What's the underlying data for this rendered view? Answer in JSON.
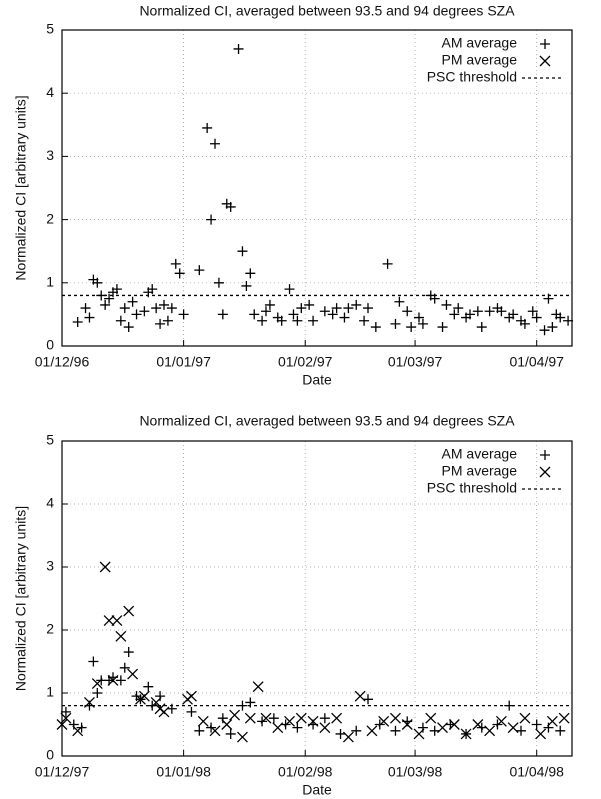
{
  "chart_data": [
    {
      "type": "scatter",
      "title": "Normalized CI, averaged between 93.5 and 94 degrees SZA",
      "xlabel": "Date",
      "ylabel": "Normalized CI [arbitrary units]",
      "xlim": [
        "1996-12-01",
        "1997-04-10"
      ],
      "xticks": [
        {
          "value": "1996-12-01",
          "label": "01/12/96"
        },
        {
          "value": "1997-01-01",
          "label": "01/01/97"
        },
        {
          "value": "1997-02-01",
          "label": "01/02/97"
        },
        {
          "value": "1997-03-01",
          "label": "01/03/97"
        },
        {
          "value": "1997-04-01",
          "label": "01/04/97"
        }
      ],
      "ylim": [
        0,
        5
      ],
      "yticks": [
        0,
        1,
        2,
        3,
        4,
        5
      ],
      "grid": true,
      "legend": "upper right",
      "threshold": {
        "name": "PSC threshold",
        "value": 0.8
      },
      "series": [
        {
          "name": "AM average",
          "marker": "plus",
          "color": "#000000",
          "x": [
            "1996-12-05",
            "1996-12-07",
            "1996-12-08",
            "1996-12-09",
            "1996-12-10",
            "1996-12-11",
            "1996-12-12",
            "1996-12-13",
            "1996-12-14",
            "1996-12-15",
            "1996-12-16",
            "1996-12-17",
            "1996-12-18",
            "1996-12-19",
            "1996-12-20",
            "1996-12-22",
            "1996-12-23",
            "1996-12-24",
            "1996-12-25",
            "1996-12-26",
            "1996-12-27",
            "1996-12-28",
            "1996-12-29",
            "1996-12-30",
            "1996-12-31",
            "1997-01-01",
            "1997-01-05",
            "1997-01-07",
            "1997-01-08",
            "1997-01-09",
            "1997-01-10",
            "1997-01-11",
            "1997-01-12",
            "1997-01-13",
            "1997-01-15",
            "1997-01-16",
            "1997-01-17",
            "1997-01-18",
            "1997-01-19",
            "1997-01-21",
            "1997-01-22",
            "1997-01-23",
            "1997-01-25",
            "1997-01-26",
            "1997-01-28",
            "1997-01-29",
            "1997-01-30",
            "1997-01-31",
            "1997-02-02",
            "1997-02-03",
            "1997-02-06",
            "1997-02-08",
            "1997-02-09",
            "1997-02-11",
            "1997-02-12",
            "1997-02-14",
            "1997-02-16",
            "1997-02-17",
            "1997-02-19",
            "1997-02-22",
            "1997-02-24",
            "1997-02-25",
            "1997-02-27",
            "1997-02-28",
            "1997-03-02",
            "1997-03-03",
            "1997-03-05",
            "1997-03-06",
            "1997-03-08",
            "1997-03-09",
            "1997-03-11",
            "1997-03-12",
            "1997-03-14",
            "1997-03-15",
            "1997-03-17",
            "1997-03-18",
            "1997-03-20",
            "1997-03-22",
            "1997-03-23",
            "1997-03-25",
            "1997-03-26",
            "1997-03-28",
            "1997-03-29",
            "1997-03-31",
            "1997-04-01",
            "1997-04-03",
            "1997-04-04",
            "1997-04-05",
            "1997-04-06",
            "1997-04-07",
            "1997-04-09"
          ],
          "values": [
            0.38,
            0.6,
            0.45,
            1.05,
            1.0,
            0.8,
            0.65,
            0.75,
            0.85,
            0.9,
            0.4,
            0.6,
            0.3,
            0.7,
            0.5,
            0.55,
            0.85,
            0.9,
            0.6,
            0.35,
            0.65,
            0.4,
            0.6,
            1.3,
            1.15,
            0.5,
            1.2,
            3.45,
            2.0,
            3.2,
            1.0,
            0.5,
            2.25,
            2.2,
            4.7,
            1.5,
            0.95,
            1.15,
            0.5,
            0.4,
            0.55,
            0.65,
            0.45,
            0.4,
            0.9,
            0.5,
            0.4,
            0.6,
            0.65,
            0.4,
            0.55,
            0.5,
            0.6,
            0.45,
            0.6,
            0.65,
            0.4,
            0.6,
            0.3,
            1.3,
            0.35,
            0.7,
            0.55,
            0.3,
            0.45,
            0.35,
            0.8,
            0.75,
            0.3,
            0.65,
            0.5,
            0.6,
            0.45,
            0.5,
            0.55,
            0.3,
            0.55,
            0.6,
            0.55,
            0.45,
            0.5,
            0.4,
            0.35,
            0.55,
            0.45,
            0.25,
            0.75,
            0.3,
            0.5,
            0.45,
            0.4
          ]
        },
        {
          "name": "PM average",
          "marker": "cross",
          "color": "#000000",
          "x": [],
          "values": []
        }
      ]
    },
    {
      "type": "scatter",
      "title": "Normalized CI, averaged between 93.5 and 94 degrees SZA",
      "xlabel": "Date",
      "ylabel": "Normalized CI [arbitrary units]",
      "xlim": [
        "1997-12-01",
        "1998-04-10"
      ],
      "xticks": [
        {
          "value": "1997-12-01",
          "label": "01/12/97"
        },
        {
          "value": "1998-01-01",
          "label": "01/01/98"
        },
        {
          "value": "1998-02-01",
          "label": "01/02/98"
        },
        {
          "value": "1998-03-01",
          "label": "01/03/98"
        },
        {
          "value": "1998-04-01",
          "label": "01/04/98"
        }
      ],
      "ylim": [
        0,
        5
      ],
      "yticks": [
        0,
        1,
        2,
        3,
        4,
        5
      ],
      "grid": true,
      "legend": "upper right",
      "threshold": {
        "name": "PSC threshold",
        "value": 0.8
      },
      "series": [
        {
          "name": "AM average",
          "marker": "plus",
          "color": "#000000",
          "x": [
            "1997-12-02",
            "1997-12-04",
            "1997-12-06",
            "1997-12-08",
            "1997-12-09",
            "1997-12-10",
            "1997-12-11",
            "1997-12-13",
            "1997-12-14",
            "1997-12-16",
            "1997-12-17",
            "1997-12-18",
            "1997-12-20",
            "1997-12-21",
            "1997-12-23",
            "1997-12-24",
            "1997-12-26",
            "1997-12-29",
            "1998-01-03",
            "1998-01-05",
            "1998-01-08",
            "1998-01-11",
            "1998-01-13",
            "1998-01-16",
            "1998-01-18",
            "1998-01-21",
            "1998-01-24",
            "1998-01-27",
            "1998-01-30",
            "1998-02-03",
            "1998-02-06",
            "1998-02-10",
            "1998-02-14",
            "1998-02-17",
            "1998-02-20",
            "1998-02-24",
            "1998-02-27",
            "1998-03-03",
            "1998-03-06",
            "1998-03-10",
            "1998-03-14",
            "1998-03-18",
            "1998-03-22",
            "1998-03-25",
            "1998-03-28",
            "1998-04-01",
            "1998-04-04",
            "1998-04-07"
          ],
          "values": [
            0.7,
            0.5,
            0.45,
            0.8,
            1.5,
            1.0,
            1.2,
            1.2,
            1.25,
            1.2,
            1.4,
            1.65,
            0.95,
            0.9,
            1.1,
            0.8,
            0.95,
            0.75,
            0.7,
            0.4,
            0.45,
            0.6,
            0.35,
            0.8,
            0.85,
            0.55,
            0.6,
            0.5,
            0.45,
            0.5,
            0.6,
            0.35,
            0.4,
            0.9,
            0.5,
            0.4,
            0.55,
            0.45,
            0.4,
            0.5,
            0.35,
            0.45,
            0.5,
            0.8,
            0.4,
            0.5,
            0.45,
            0.4
          ]
        },
        {
          "name": "PM average",
          "marker": "cross",
          "color": "#000000",
          "x": [
            "1997-12-01",
            "1997-12-02",
            "1997-12-05",
            "1997-12-08",
            "1997-12-10",
            "1997-12-12",
            "1997-12-13",
            "1997-12-14",
            "1997-12-15",
            "1997-12-16",
            "1997-12-18",
            "1997-12-19",
            "1997-12-21",
            "1997-12-22",
            "1997-12-25",
            "1997-12-26",
            "1997-12-27",
            "1998-01-02",
            "1998-01-03",
            "1998-01-06",
            "1998-01-09",
            "1998-01-12",
            "1998-01-14",
            "1998-01-16",
            "1998-01-18",
            "1998-01-20",
            "1998-01-22",
            "1998-01-25",
            "1998-01-28",
            "1998-01-31",
            "1998-02-03",
            "1998-02-06",
            "1998-02-09",
            "1998-02-12",
            "1998-02-15",
            "1998-02-18",
            "1998-02-21",
            "1998-02-24",
            "1998-02-27",
            "1998-03-02",
            "1998-03-05",
            "1998-03-08",
            "1998-03-11",
            "1998-03-14",
            "1998-03-17",
            "1998-03-20",
            "1998-03-23",
            "1998-03-26",
            "1998-03-29",
            "1998-04-02",
            "1998-04-05",
            "1998-04-08"
          ],
          "values": [
            0.5,
            0.6,
            0.4,
            0.85,
            1.15,
            3.0,
            2.15,
            1.2,
            2.15,
            1.9,
            2.3,
            1.3,
            0.9,
            0.95,
            0.85,
            0.75,
            0.7,
            0.9,
            0.95,
            0.55,
            0.4,
            0.5,
            0.65,
            0.3,
            0.6,
            1.1,
            0.6,
            0.45,
            0.55,
            0.6,
            0.55,
            0.45,
            0.6,
            0.3,
            0.95,
            0.4,
            0.55,
            0.6,
            0.5,
            0.35,
            0.6,
            0.45,
            0.5,
            0.35,
            0.5,
            0.4,
            0.55,
            0.45,
            0.6,
            0.35,
            0.55,
            0.6
          ]
        }
      ]
    }
  ]
}
